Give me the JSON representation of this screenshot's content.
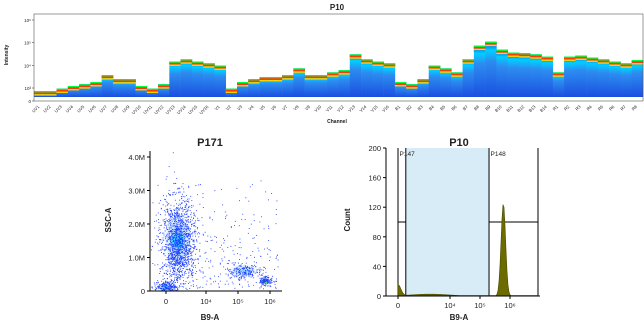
{
  "chart_data": [
    {
      "type": "heatmap",
      "title": "P10",
      "xlabel": "Channel",
      "ylabel": "Intensity",
      "y_scale": "log",
      "y_tick_labels": [
        "0",
        "10³",
        "10⁴",
        "10⁵",
        "10⁶"
      ],
      "y_tick_values": [
        0,
        1000,
        10000,
        100000,
        1000000
      ],
      "categories": [
        "UV1",
        "UV2",
        "UV3",
        "UV4",
        "UV5",
        "UV6",
        "UV7",
        "UV8",
        "UV9",
        "UV10",
        "UV11",
        "UV12",
        "UV13",
        "UV14",
        "UV15",
        "UV16",
        "V1",
        "V2",
        "V3",
        "V4",
        "V5",
        "V6",
        "V7",
        "V8",
        "V9",
        "V10",
        "V11",
        "V12",
        "V13",
        "V14",
        "V15",
        "V16",
        "B1",
        "B2",
        "B3",
        "B4",
        "B5",
        "B6",
        "B7",
        "B8",
        "B9",
        "B10",
        "B11",
        "B12",
        "B13",
        "B14",
        "R1",
        "R2",
        "R3",
        "R4",
        "R5",
        "R6",
        "R7",
        "R8"
      ],
      "peak_intensity": [
        600,
        600,
        800,
        1000,
        1200,
        1500,
        3000,
        2000,
        2000,
        1000,
        800,
        1200,
        12000,
        15000,
        12000,
        10000,
        8000,
        800,
        1500,
        2000,
        2500,
        2500,
        3000,
        6000,
        3000,
        3000,
        4000,
        5000,
        25000,
        15000,
        12000,
        10000,
        1500,
        1200,
        2000,
        8000,
        6000,
        4000,
        15000,
        60000,
        90000,
        40000,
        30000,
        28000,
        25000,
        20000,
        4000,
        20000,
        22000,
        18000,
        15000,
        12000,
        10000,
        14000
      ]
    },
    {
      "type": "scatter",
      "title": "P171",
      "xlabel": "B9-A",
      "ylabel": "SSC-A",
      "x_scale": "biexponential",
      "x_tick_labels": [
        "0",
        "10⁴",
        "10⁵",
        "10⁶"
      ],
      "y_tick_labels": [
        "0",
        "1.0M",
        "2.0M",
        "3.0M",
        "4.0M"
      ],
      "ylim": [
        0,
        4000000
      ],
      "populations": [
        {
          "x": 3000,
          "y": 1500000
        },
        {
          "x": 0,
          "y": 100000
        },
        {
          "x": 150000,
          "y": 600000
        },
        {
          "x": 700000,
          "y": 300000
        }
      ]
    },
    {
      "type": "area",
      "title": "P10",
      "xlabel": "B9-A",
      "ylabel": "Count",
      "x_scale": "biexponential",
      "x_tick_labels": [
        "0",
        "10⁴",
        "10⁵",
        "10⁶"
      ],
      "ylim": [
        0,
        200
      ],
      "y_ticks": [
        0,
        40,
        80,
        120,
        160,
        200
      ],
      "fill_color": "#6b6b00",
      "gates": [
        {
          "name": "P147",
          "x_range": [
            "min",
            1500
          ],
          "count_line": 100
        },
        {
          "name": "P148",
          "x_range": [
            200000,
            "max"
          ],
          "count_line": 100
        }
      ],
      "peaks": [
        {
          "x": 0,
          "y": 15
        },
        {
          "x": 600000,
          "y": 125
        }
      ]
    }
  ]
}
